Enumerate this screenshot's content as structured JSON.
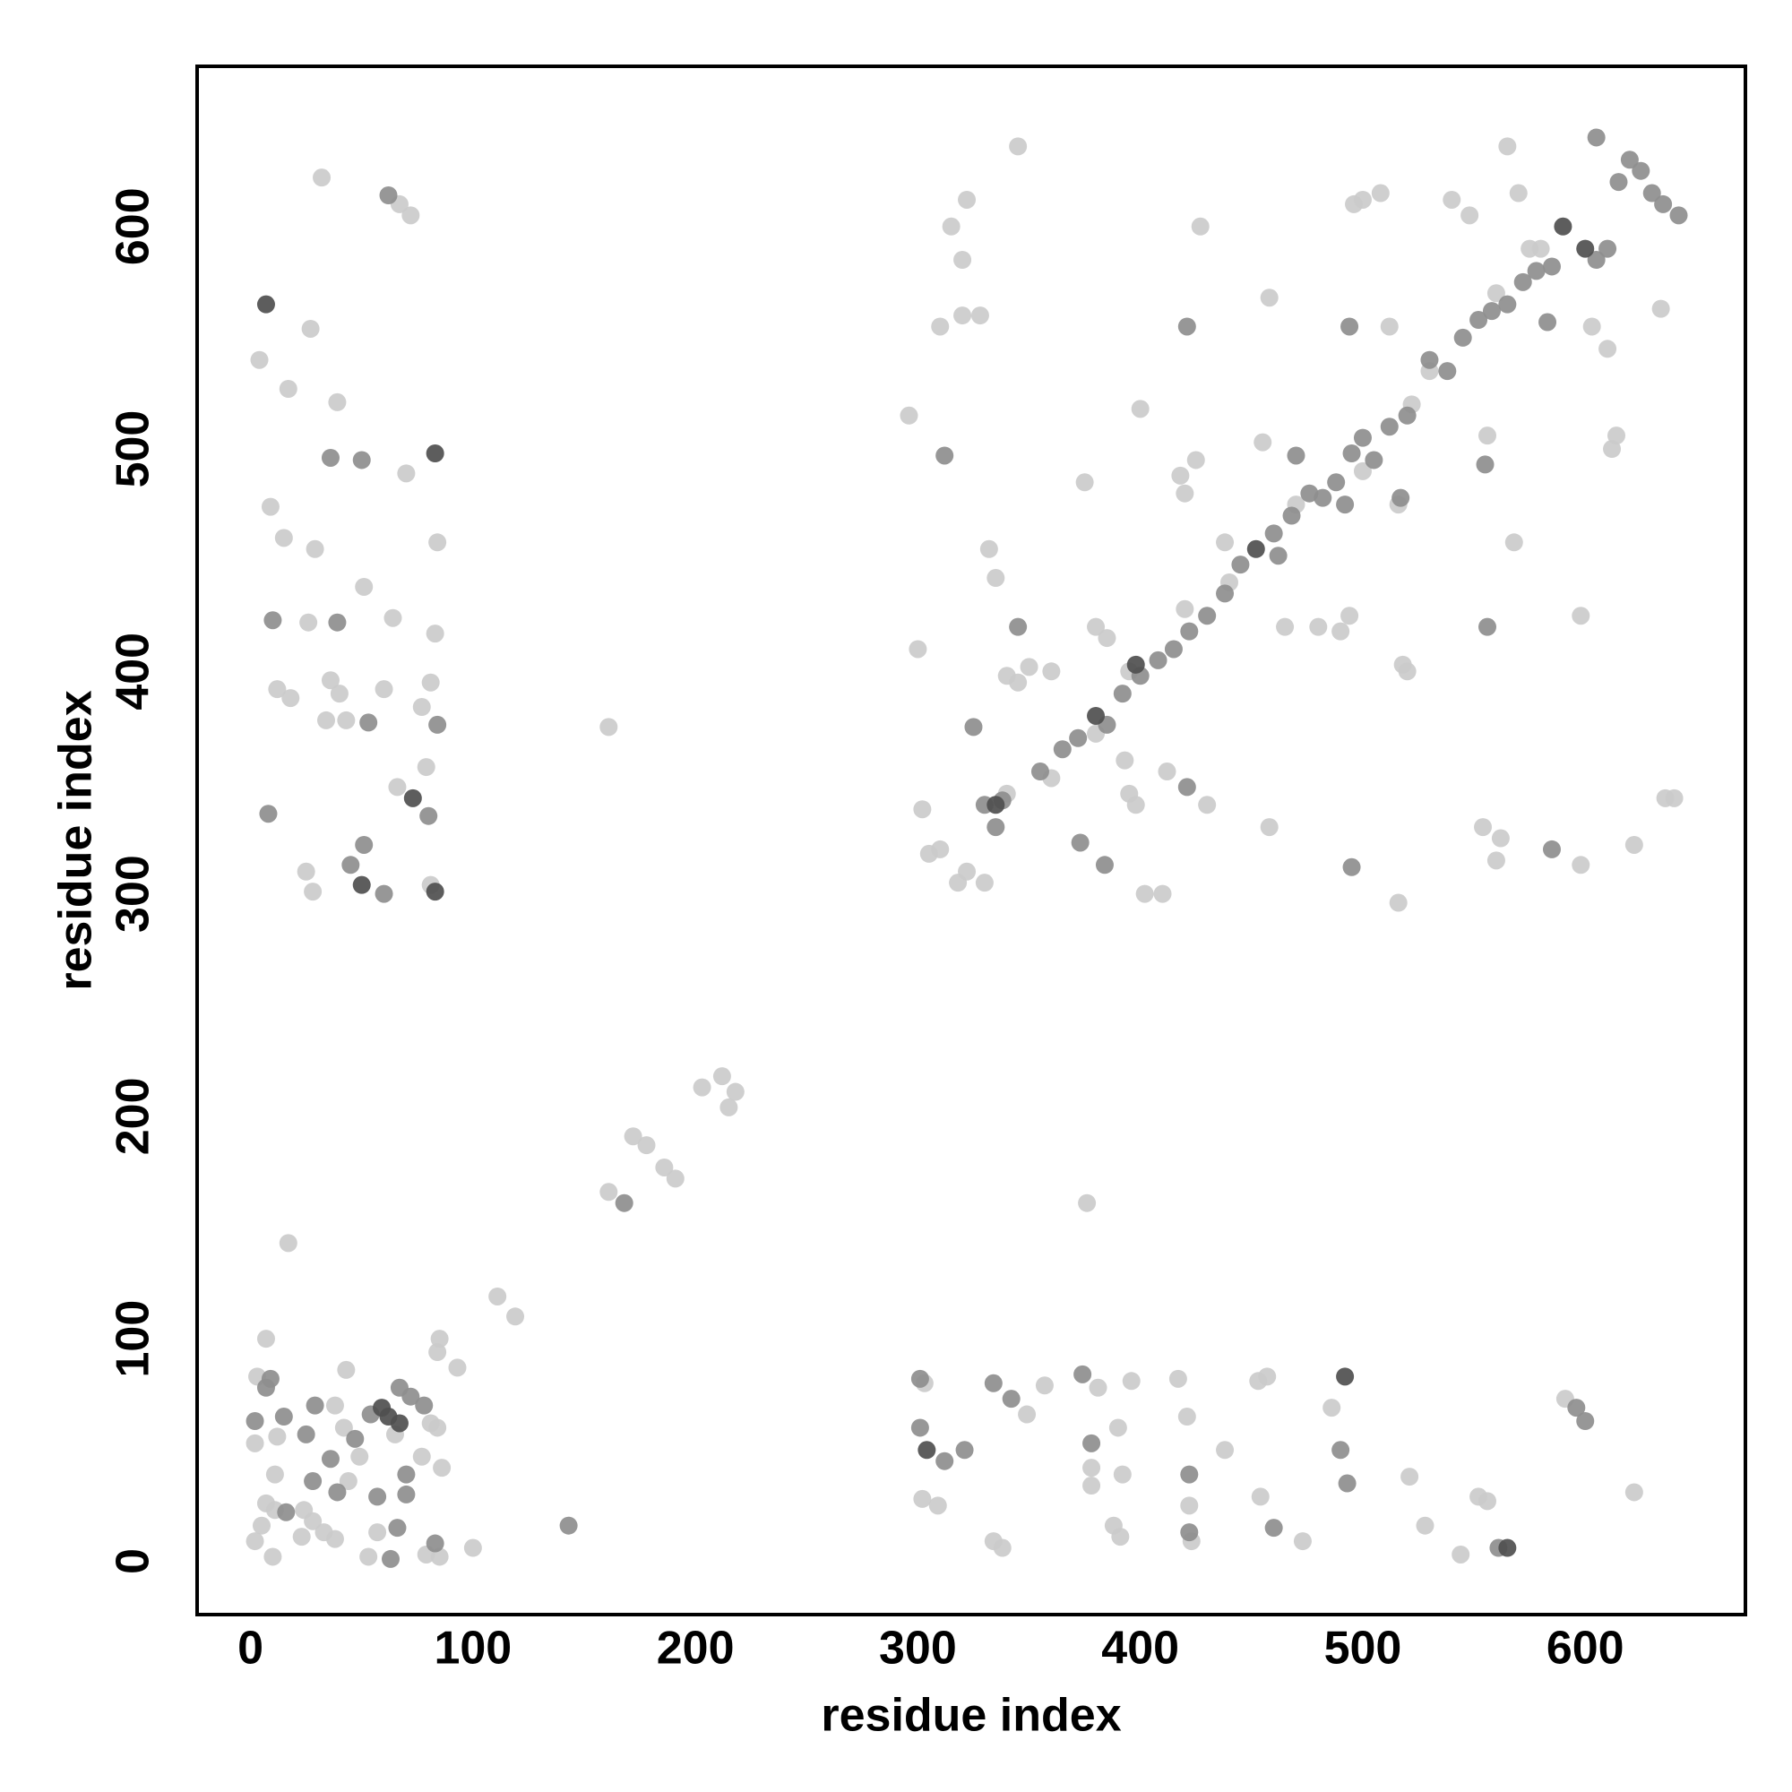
{
  "chart_data": {
    "type": "scatter",
    "x_label": "residue index",
    "y_label": "residue index",
    "xlim": [
      -24,
      672
    ],
    "ylim": [
      -24,
      672
    ],
    "xticks": [
      0,
      100,
      200,
      300,
      400,
      500,
      600
    ],
    "yticks": [
      0,
      100,
      200,
      300,
      400,
      500,
      600
    ],
    "grid": false,
    "series": [
      {
        "color": "#cbcbcb",
        "x": [
          111,
          119,
          161,
          172,
          178,
          186,
          191,
          203,
          212,
          215,
          218,
          100,
          84,
          93,
          85,
          17,
          376,
          161,
          32,
          4,
          27,
          17,
          39,
          70,
          9,
          15,
          29,
          51,
          84,
          26,
          64,
          83,
          12,
          18,
          36,
          40,
          34,
          43,
          60,
          81,
          77,
          79,
          66,
          25,
          28,
          81,
          67,
          72,
          3,
          7,
          2,
          12,
          11,
          7,
          11,
          5,
          2,
          10,
          23,
          24,
          28,
          38,
          42,
          44,
          49,
          65,
          81,
          84,
          86,
          77,
          57,
          53,
          79,
          85,
          43,
          38,
          33,
          303,
          302,
          309,
          338,
          349,
          357,
          381,
          378,
          378,
          390,
          392,
          396,
          388,
          391,
          334,
          417,
          421,
          422,
          423,
          438,
          453,
          457,
          454,
          473,
          486,
          521,
          528,
          544,
          552,
          556,
          591,
          622,
          340,
          360,
          380,
          395,
          420,
          440,
          470,
          500,
          530,
          560,
          580,
          296,
          300,
          302,
          305,
          310,
          318,
          322,
          330,
          310,
          315,
          320,
          322,
          320,
          328,
          332,
          335,
          340,
          345,
          345,
          350,
          360,
          375,
          380,
          385,
          393,
          395,
          398,
          400,
          402,
          410,
          412,
          418,
          420,
          425,
          427,
          430,
          438,
          455,
          458,
          458,
          465,
          480,
          490,
          494,
          496,
          500,
          508,
          512,
          516,
          518,
          520,
          522,
          516,
          540,
          548,
          556,
          554,
          560,
          562,
          565,
          568,
          570,
          598,
          598,
          603,
          610,
          612,
          614,
          622,
          636,
          640,
          634,
          575
        ],
        "y": [
          119,
          110,
          166,
          191,
          187,
          177,
          172,
          213,
          218,
          204,
          211,
          6,
          94,
          87,
          100,
          143,
          161,
          375,
          622,
          540,
          554,
          527,
          521,
          489,
          474,
          460,
          455,
          438,
          458,
          422,
          424,
          417,
          392,
          388,
          396,
          390,
          378,
          378,
          392,
          395,
          384,
          357,
          348,
          310,
          301,
          304,
          610,
          605,
          83,
          100,
          53,
          56,
          39,
          26,
          23,
          16,
          9,
          2,
          11,
          23,
          18,
          70,
          60,
          36,
          47,
          57,
          62,
          60,
          42,
          47,
          13,
          2,
          3,
          2,
          86,
          10,
          13,
          80,
          28,
          25,
          6,
          66,
          79,
          78,
          42,
          34,
          60,
          39,
          81,
          16,
          11,
          9,
          82,
          65,
          25,
          9,
          50,
          81,
          83,
          29,
          9,
          69,
          38,
          16,
          3,
          29,
          27,
          73,
          31,
          345,
          352,
          372,
          400,
          428,
          440,
          475,
          490,
          535,
          570,
          590,
          515,
          410,
          338,
          318,
          320,
          305,
          310,
          305,
          555,
          600,
          585,
          612,
          560,
          560,
          455,
          442,
          398,
          395,
          636,
          402,
          400,
          485,
          420,
          415,
          360,
          345,
          340,
          518,
          300,
          300,
          355,
          488,
          480,
          495,
          600,
          340,
          458,
          503,
          568,
          330,
          420,
          420,
          418,
          425,
          610,
          612,
          615,
          555,
          475,
          403,
          400,
          520,
          296,
          612,
          605,
          506,
          330,
          315,
          325,
          636,
          458,
          615,
          425,
          313,
          555,
          545,
          500,
          506,
          322,
          343,
          343,
          563,
          590
        ]
      },
      {
        "color": "#8e8e8e",
        "x": [
          36,
          50,
          10,
          39,
          53,
          84,
          8,
          80,
          45,
          51,
          60,
          62,
          143,
          168,
          2,
          7,
          9,
          15,
          16,
          25,
          29,
          36,
          39,
          47,
          54,
          67,
          72,
          78,
          70,
          70,
          57,
          63,
          66,
          83,
          28,
          301,
          301,
          312,
          321,
          334,
          342,
          374,
          378,
          422,
          422,
          460,
          490,
          493,
          561,
          596,
          600,
          330,
          335,
          355,
          365,
          372,
          385,
          392,
          400,
          408,
          415,
          422,
          430,
          438,
          445,
          460,
          468,
          476,
          482,
          488,
          495,
          500,
          505,
          512,
          520,
          530,
          538,
          545,
          552,
          558,
          565,
          572,
          578,
          585,
          605,
          610,
          615,
          625,
          630,
          635,
          642,
          605,
          620,
          312,
          325,
          338,
          345,
          373,
          384,
          421,
          421,
          462,
          495,
          494,
          556,
          555,
          517,
          492,
          470,
          583,
          585
        ],
        "y": [
          496,
          495,
          423,
          422,
          377,
          376,
          336,
          335,
          313,
          322,
          300,
          614,
          16,
          161,
          63,
          78,
          82,
          65,
          22,
          57,
          70,
          46,
          31,
          55,
          66,
          78,
          74,
          70,
          39,
          30,
          29,
          1,
          15,
          8,
          36,
          82,
          60,
          45,
          50,
          80,
          73,
          84,
          53,
          39,
          13,
          15,
          50,
          35,
          6,
          69,
          63,
          340,
          330,
          355,
          365,
          370,
          376,
          390,
          398,
          405,
          410,
          418,
          425,
          435,
          448,
          462,
          470,
          480,
          478,
          485,
          498,
          505,
          495,
          510,
          515,
          540,
          535,
          550,
          558,
          562,
          565,
          575,
          580,
          582,
          585,
          590,
          620,
          625,
          615,
          610,
          605,
          640,
          630,
          497,
          375,
          342,
          420,
          323,
          313,
          348,
          555,
          452,
          312,
          555,
          420,
          493,
          478,
          475,
          497,
          557,
          320
        ]
      },
      {
        "color": "#4f4f4f",
        "x": [
          7,
          83,
          73,
          50,
          83,
          59,
          62,
          67,
          304,
          492,
          565,
          590,
          600,
          335,
          452,
          380,
          398
        ],
        "y": [
          565,
          498,
          343,
          304,
          301,
          69,
          65,
          62,
          50,
          83,
          6,
          600,
          590,
          340,
          455,
          380,
          403
        ]
      }
    ]
  }
}
